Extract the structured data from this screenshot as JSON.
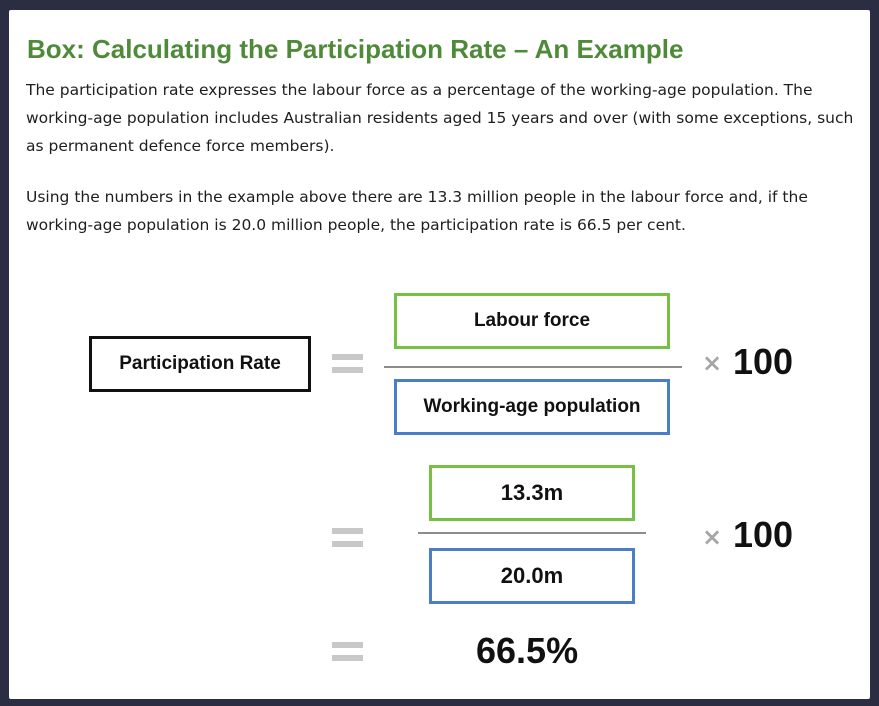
{
  "box": {
    "title": "Box: Calculating the Participation Rate – An Example",
    "paragraph1": "The participation rate expresses the labour force as a percentage of the working-age population. The working-age population includes Australian residents aged 15 years and over (with some exceptions, such as permanent defence force members).",
    "paragraph2": "Using the numbers in the example above there are 13.3 million people in the labour force and, if the working-age population is 20.0 million people, the participation rate is 66.5 per cent."
  },
  "formula": {
    "lhs_label": "Participation Rate",
    "numerator": "Labour force",
    "denominator": "Working-age population",
    "multiplier_sign": "×",
    "multiplier": "100"
  },
  "calculation": {
    "numerator": "13.3m",
    "denominator": "20.0m",
    "multiplier_sign": "×",
    "multiplier": "100",
    "result": "66.5%"
  },
  "colors": {
    "title_green": "#4f8a3a",
    "numerator_border": "#76c043",
    "denominator_border": "#4a7fc8",
    "equals_grey": "#c8c8c8"
  }
}
